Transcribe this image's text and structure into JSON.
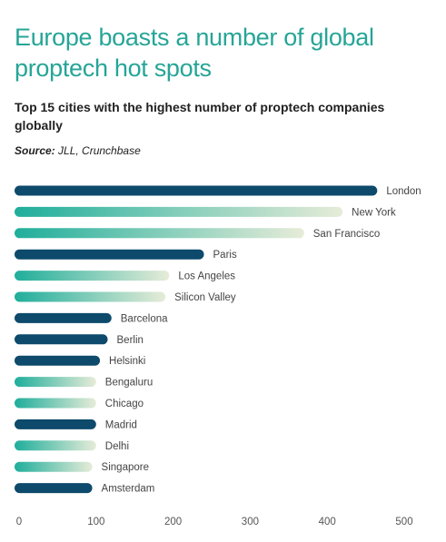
{
  "title": "Europe boasts a number of global proptech hot spots",
  "subtitle": "Top 15 cities with the highest number of proptech companies globally",
  "source": {
    "label": "Source:",
    "value": "JLL, Crunchbase"
  },
  "colors": {
    "european": "#0d4a6b",
    "gradient_start": "#1fae9b",
    "gradient_end": "#e6ecd8",
    "axis_text": "#555555",
    "bar_label": "#444444",
    "gridline": "#dddddd"
  },
  "chart_data": {
    "type": "bar",
    "orientation": "horizontal",
    "title": "Europe boasts a number of global proptech hot spots",
    "subtitle": "Top 15 cities with the highest number of proptech companies globally",
    "categories": [
      "London",
      "New York",
      "San Francisco",
      "Paris",
      "Los Angeles",
      "Silicon Valley",
      "Barcelona",
      "Berlin",
      "Helsinki",
      "Bengaluru",
      "Chicago",
      "Madrid",
      "Delhi",
      "Singapore",
      "Amsterdam"
    ],
    "values": [
      465,
      420,
      370,
      240,
      195,
      190,
      120,
      115,
      105,
      100,
      100,
      100,
      100,
      95,
      95
    ],
    "european": [
      true,
      false,
      false,
      true,
      false,
      false,
      true,
      true,
      true,
      false,
      false,
      true,
      false,
      false,
      true
    ],
    "xlim": [
      0,
      500
    ],
    "xticks": [
      0,
      100,
      200,
      300,
      400,
      500
    ],
    "grid": false,
    "legend": "none"
  }
}
